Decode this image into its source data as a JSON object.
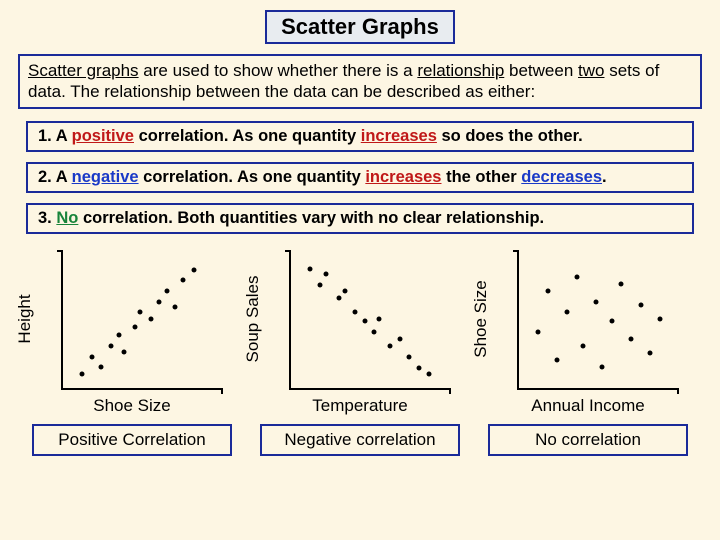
{
  "title": "Scatter Graphs",
  "intro_parts": {
    "p1": "Scatter graphs",
    "p2": " are used to show whether there is a ",
    "p3": "relationship",
    "p4": " between ",
    "p5": "two",
    "p6": " sets of data. The relationship between the data can be described as either:"
  },
  "rules": {
    "r1": {
      "prefix": "1. A ",
      "kw": "positive",
      "mid": " correlation. As one quantity ",
      "kw2": "increases",
      "tail": " so does the other."
    },
    "r2": {
      "prefix": "2. A ",
      "kw": "negative",
      "mid": " correlation. As one quantity ",
      "kw2": "increases",
      "mid2": " the other ",
      "kw3": "decreases",
      "tail": "."
    },
    "r3": {
      "prefix": "3. ",
      "kw": "No",
      "tail": " correlation. Both quantities vary with no clear relationship."
    }
  },
  "charts": [
    {
      "type": "scatter",
      "ylabel": "Height",
      "xlabel": "Shoe Size",
      "caption": "Positive Correlation",
      "xlim": [
        0,
        100
      ],
      "ylim": [
        0,
        100
      ],
      "point_color": "#000000",
      "points": [
        {
          "x": 12,
          "y": 10
        },
        {
          "x": 18,
          "y": 22
        },
        {
          "x": 24,
          "y": 15
        },
        {
          "x": 30,
          "y": 30
        },
        {
          "x": 35,
          "y": 38
        },
        {
          "x": 38,
          "y": 26
        },
        {
          "x": 45,
          "y": 44
        },
        {
          "x": 48,
          "y": 55
        },
        {
          "x": 55,
          "y": 50
        },
        {
          "x": 60,
          "y": 62
        },
        {
          "x": 65,
          "y": 70
        },
        {
          "x": 70,
          "y": 58
        },
        {
          "x": 75,
          "y": 78
        },
        {
          "x": 82,
          "y": 85
        }
      ]
    },
    {
      "type": "scatter",
      "ylabel": "Soup Sales",
      "xlabel": "Temperature",
      "caption": "Negative correlation",
      "xlim": [
        0,
        100
      ],
      "ylim": [
        0,
        100
      ],
      "point_color": "#000000",
      "points": [
        {
          "x": 12,
          "y": 86
        },
        {
          "x": 18,
          "y": 74
        },
        {
          "x": 22,
          "y": 82
        },
        {
          "x": 30,
          "y": 65
        },
        {
          "x": 34,
          "y": 70
        },
        {
          "x": 40,
          "y": 55
        },
        {
          "x": 46,
          "y": 48
        },
        {
          "x": 52,
          "y": 40
        },
        {
          "x": 55,
          "y": 50
        },
        {
          "x": 62,
          "y": 30
        },
        {
          "x": 68,
          "y": 35
        },
        {
          "x": 74,
          "y": 22
        },
        {
          "x": 80,
          "y": 14
        },
        {
          "x": 86,
          "y": 10
        }
      ]
    },
    {
      "type": "scatter",
      "ylabel": "Shoe Size",
      "xlabel": "Annual Income",
      "caption": "No correlation",
      "xlim": [
        0,
        100
      ],
      "ylim": [
        0,
        100
      ],
      "point_color": "#000000",
      "points": [
        {
          "x": 12,
          "y": 40
        },
        {
          "x": 18,
          "y": 70
        },
        {
          "x": 24,
          "y": 20
        },
        {
          "x": 30,
          "y": 55
        },
        {
          "x": 36,
          "y": 80
        },
        {
          "x": 40,
          "y": 30
        },
        {
          "x": 48,
          "y": 62
        },
        {
          "x": 52,
          "y": 15
        },
        {
          "x": 58,
          "y": 48
        },
        {
          "x": 64,
          "y": 75
        },
        {
          "x": 70,
          "y": 35
        },
        {
          "x": 76,
          "y": 60
        },
        {
          "x": 82,
          "y": 25
        },
        {
          "x": 88,
          "y": 50
        }
      ]
    }
  ],
  "colors": {
    "page_bg": "#fdf6e3",
    "border": "#1a2a99",
    "title_bg": "#e8ecf0",
    "positive": "#c01818",
    "negative": "#1a39c7",
    "none": "#18843a"
  }
}
